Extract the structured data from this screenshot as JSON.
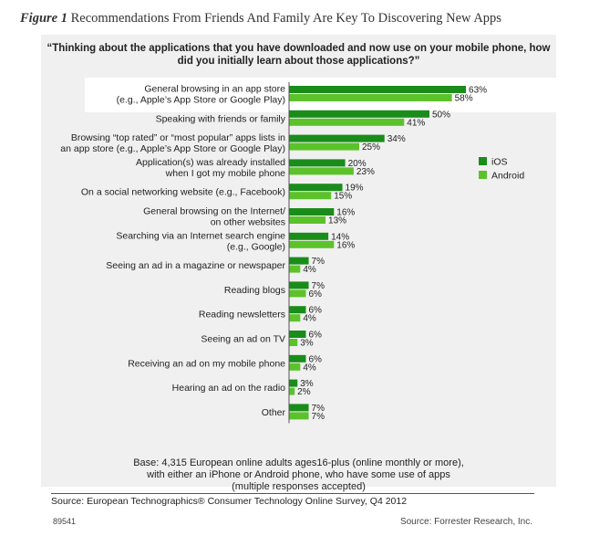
{
  "figure": {
    "label": "Figure 1",
    "title": "Recommendations From Friends And Family Are Key To Discovering New Apps"
  },
  "chart_data": {
    "type": "bar",
    "orientation": "horizontal",
    "title": "“Thinking about the applications that you have downloaded and now use on your mobile phone, how did you initially learn about those applications?”",
    "categories": [
      [
        "General browsing in an app store",
        "(e.g., Apple’s App Store or Google Play)"
      ],
      [
        "Speaking with friends or family"
      ],
      [
        "Browsing “top rated” or “most popular” apps lists in",
        "an app store (e.g., Apple’s App Store or Google Play)"
      ],
      [
        "Application(s) was already installed",
        "when I got my mobile phone"
      ],
      [
        "On a social networking website (e.g., Facebook)"
      ],
      [
        "General browsing on the Internet/",
        "on other websites"
      ],
      [
        "Searching via an Internet search engine",
        "(e.g., Google)"
      ],
      [
        "Seeing an ad in a magazine or newspaper"
      ],
      [
        "Reading blogs"
      ],
      [
        "Reading newsletters"
      ],
      [
        "Seeing an ad on TV"
      ],
      [
        "Receiving an ad on my mobile phone"
      ],
      [
        "Hearing an ad on the radio"
      ],
      [
        "Other"
      ]
    ],
    "series": [
      {
        "name": "iOS",
        "color": "#1a8c1a",
        "values": [
          63,
          50,
          34,
          20,
          19,
          16,
          14,
          7,
          7,
          6,
          6,
          6,
          3,
          7
        ]
      },
      {
        "name": "Android",
        "color": "#5cc22b",
        "values": [
          58,
          41,
          25,
          23,
          15,
          13,
          16,
          4,
          6,
          4,
          3,
          4,
          2,
          7
        ]
      }
    ],
    "xlim": [
      0,
      70
    ],
    "value_suffix": "%",
    "legend_position": "right",
    "highlighted_category_index": 0
  },
  "base_note": [
    "Base: 4,315 European online adults ages16-plus (online monthly or more),",
    "with either an iPhone or Android phone, who have some use of apps",
    "(multiple responses accepted)"
  ],
  "source_left": "Source: European Technographics® Consumer Technology Online Survey, Q4 2012",
  "doc_number": "89541",
  "source_right": "Source: Forrester Research, Inc."
}
